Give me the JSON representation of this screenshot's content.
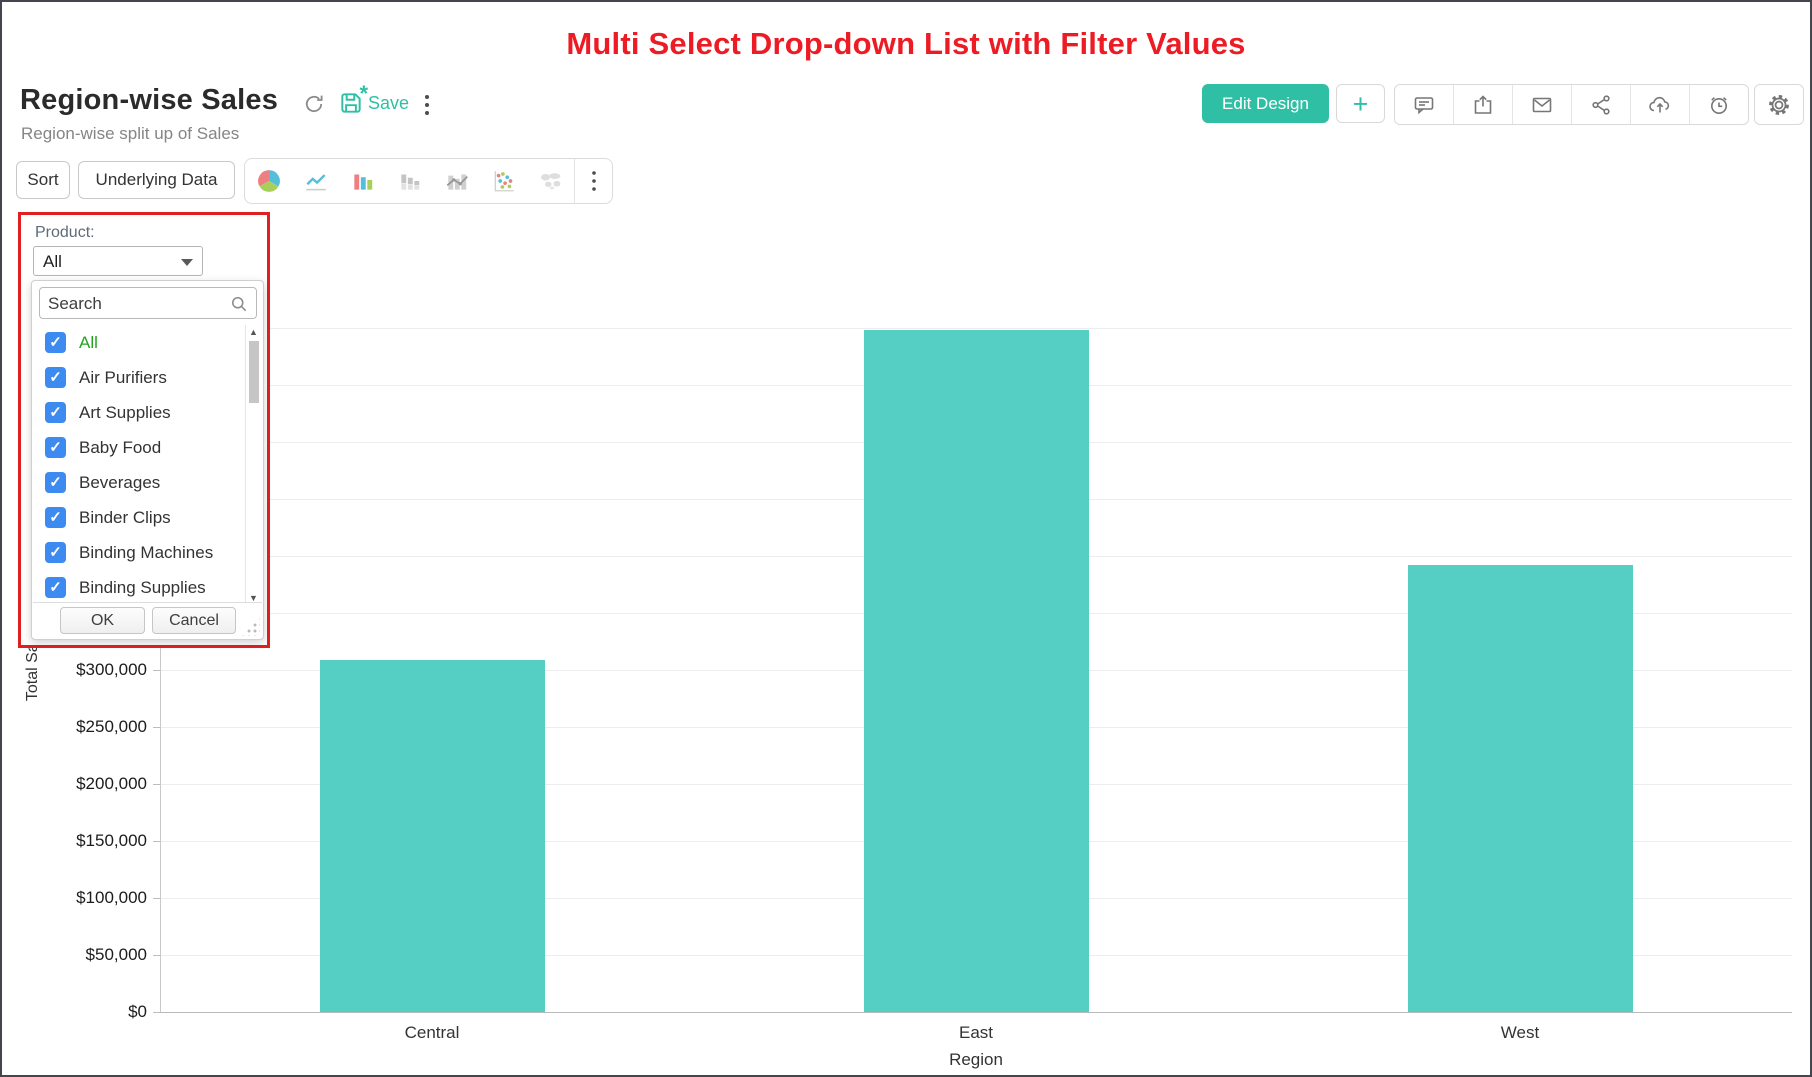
{
  "banner": {
    "title": "Multi Select Drop-down List with Filter Values",
    "color": "#ed1c24"
  },
  "header": {
    "title": "Region-wise Sales",
    "subtitle": "Region-wise split up of Sales",
    "refresh_icon": "refresh-icon",
    "save_label": "Save",
    "save_icon": "save-icon",
    "menu_icon": "kebab-menu-icon",
    "actions": {
      "edit_design_label": "Edit Design",
      "add_label": "+",
      "icon_buttons": [
        "comment-icon",
        "export-icon",
        "email-icon",
        "share-icon",
        "cloud-upload-icon",
        "reminder-icon"
      ],
      "settings_icon": "gear-icon"
    }
  },
  "toolbar": {
    "sort_label": "Sort",
    "underlying_data_label": "Underlying Data",
    "chart_type_icons": [
      "pie-chart-icon",
      "line-chart-icon",
      "bar-chart-icon",
      "stacked-bar-icon",
      "bar-line-chart-icon",
      "scatter-plot-icon",
      "map-chart-icon",
      "more-options-icon"
    ]
  },
  "filter_panel": {
    "field_label": "Product:",
    "selected_value": "All",
    "search_placeholder": "Search",
    "items": [
      {
        "label": "All",
        "checked": true
      },
      {
        "label": "Air Purifiers",
        "checked": true
      },
      {
        "label": "Art Supplies",
        "checked": true
      },
      {
        "label": "Baby Food",
        "checked": true
      },
      {
        "label": "Beverages",
        "checked": true
      },
      {
        "label": "Binder Clips",
        "checked": true
      },
      {
        "label": "Binding Machines",
        "checked": true
      },
      {
        "label": "Binding Supplies",
        "checked": true
      }
    ],
    "ok_label": "OK",
    "cancel_label": "Cancel",
    "highlight_border_color": "#e02020",
    "checkbox_color": "#3d8af0",
    "all_item_color": "#23a323"
  },
  "chart_data": {
    "type": "bar",
    "title": "Region-wise Sales",
    "categories": [
      "Central",
      "East",
      "West"
    ],
    "values": [
      309000,
      598000,
      392000
    ],
    "xlabel": "Region",
    "ylabel": "Total Sales",
    "ylim": [
      0,
      600000
    ],
    "ytick_step": 50000,
    "ytick_prefix": "$",
    "visible_yticks": [
      "$0",
      "$50,000",
      "$100,000",
      "$150,000",
      "$200,000",
      "$250,000",
      "$300,000"
    ],
    "grid": true,
    "legend": false,
    "bar_color": "#55cfc3"
  },
  "colors": {
    "accent_teal": "#2fbfa4",
    "bar_teal": "#55cfc3",
    "banner_red": "#ed1c24",
    "filter_border_red": "#e02020"
  }
}
